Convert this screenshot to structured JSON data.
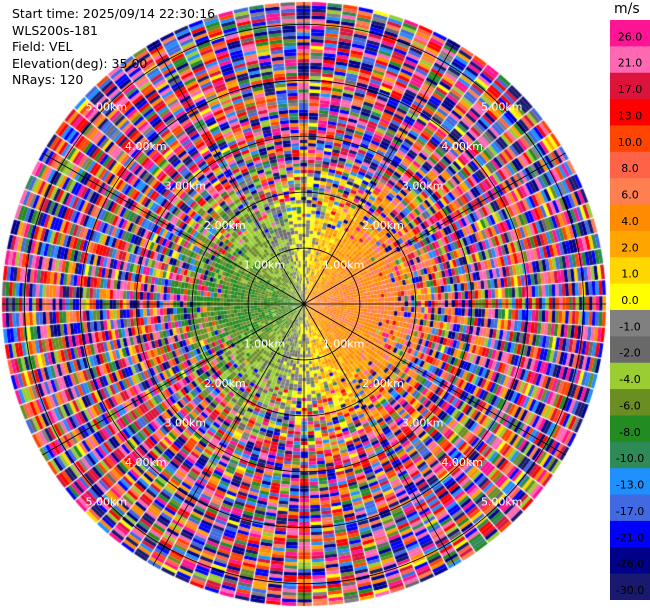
{
  "info": {
    "start_time": "Start time: 2025/09/14 22:30:16",
    "instrument": "WLS200s-181",
    "field": "Field: VEL",
    "elevation": "Elevation(deg): 35.00",
    "nrays": "NRays: 120"
  },
  "colorbar": {
    "unit": "m/s",
    "ticks": [
      "26.0",
      "21.0",
      "17.0",
      "13.0",
      "10.0",
      "8.0",
      "6.0",
      "4.0",
      "2.0",
      "1.0",
      "0.0",
      "-1.0",
      "-2.0",
      "-4.0",
      "-6.0",
      "-8.0",
      "-10.0",
      "-13.0",
      "-17.0",
      "-21.0",
      "-26.0",
      "-30.0"
    ],
    "colors": [
      "#ff1493",
      "#ff69b4",
      "#dc143c",
      "#ff0000",
      "#ff4500",
      "#ff6347",
      "#ff7f50",
      "#ff8c00",
      "#ffa500",
      "#ffd700",
      "#ffff00",
      "#808080",
      "#696969",
      "#9acd32",
      "#6b8e23",
      "#228b22",
      "#2e8b57",
      "#1e90ff",
      "#4169e1",
      "#0000ff",
      "#00008b",
      "#191970"
    ]
  },
  "chart_data": {
    "type": "heatmap",
    "projection": "polar (PPI)",
    "field": "VEL",
    "unit": "m/s",
    "nrays": 120,
    "max_range_km": 5.4,
    "range_rings_km": [
      1,
      2,
      3,
      4,
      5
    ],
    "ring_labels": [
      "1.00km",
      "2.00km",
      "3.00km",
      "4.00km",
      "5.00km"
    ],
    "azimuth_lines_deg": [
      0,
      30,
      60,
      90,
      120,
      150,
      180,
      210,
      240,
      270,
      300,
      330
    ],
    "pattern": {
      "inner_west": "negative velocities (-8 to -1 m/s, greens)",
      "inner_east": "positive velocities (1 to 8 m/s, yellow/orange)",
      "outer": "noise, full colour range"
    }
  }
}
